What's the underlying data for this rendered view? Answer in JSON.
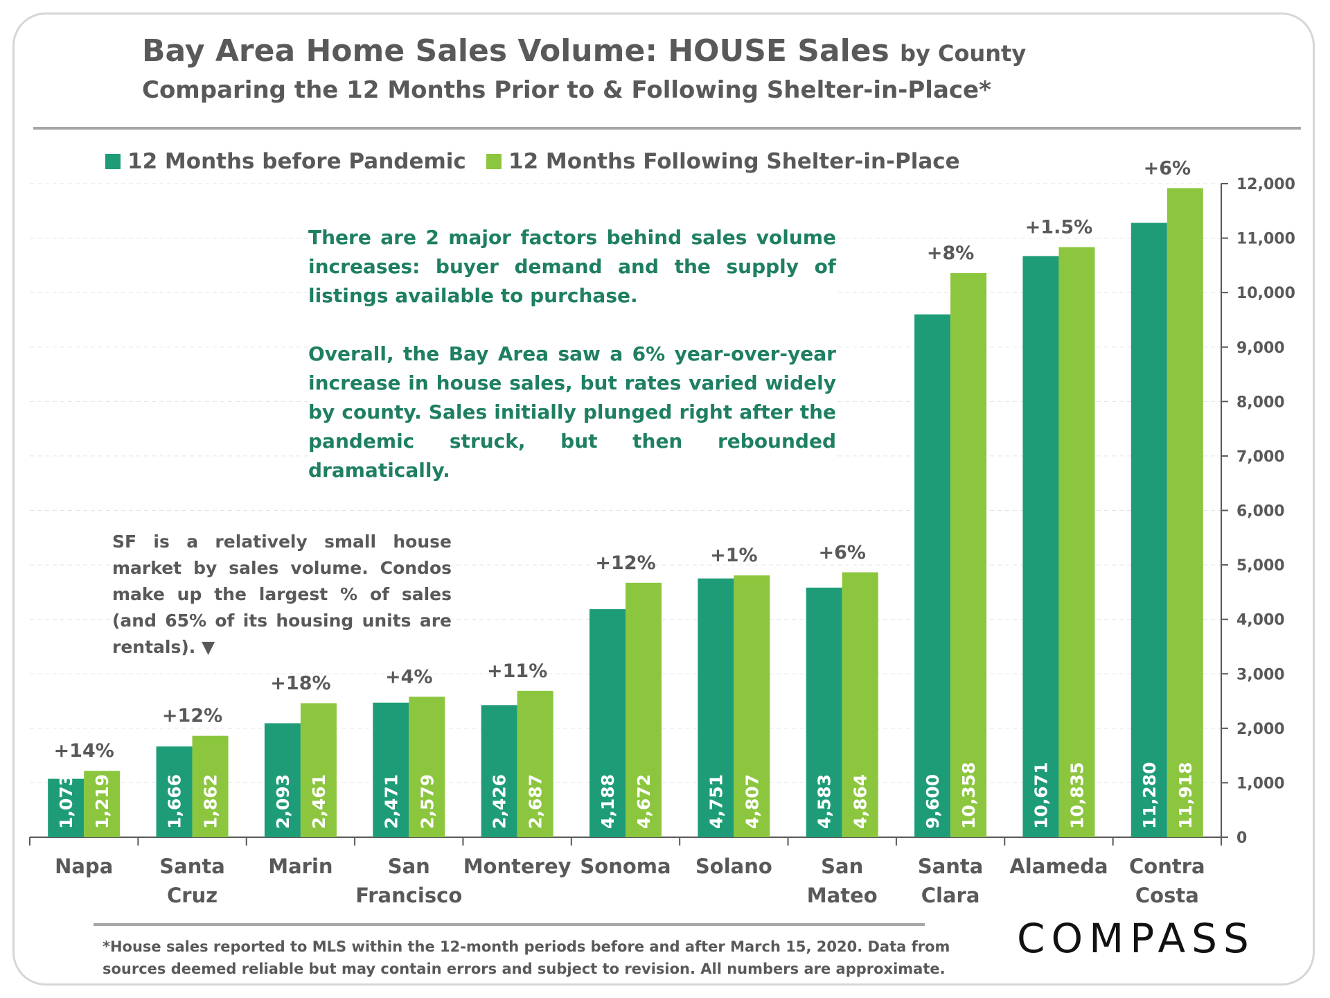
{
  "title": {
    "main": "Bay Area Home Sales Volume: HOUSE Sales",
    "suffix": "by County",
    "subtitle": "Comparing the 12 Months Prior to & Following Shelter-in-Place*"
  },
  "notes": {
    "factors": "There are 2 major factors behind sales volume increases: buyer demand and the supply of listings available to purchase.",
    "overall": "Overall, the Bay Area saw a 6% year-over-year increase in house sales, but rates varied widely by county. Sales initially plunged right after the pandemic struck, but then rebounded dramatically.",
    "sf": "SF is a relatively small house market by sales volume. Condos make up the largest % of sales (and 65% of its housing units are rentals). ▼"
  },
  "footnote": {
    "line1": "*House sales reported to MLS within the 12-month periods before and after March 15, 2020. Data from",
    "line2": "sources deemed reliable but may contain errors and subject to revision.  All numbers are approximate."
  },
  "logo": "COMPASS",
  "colors": {
    "before": "#1e9c78",
    "after": "#8cc63f"
  },
  "chart_data": {
    "type": "bar",
    "title": "Bay Area Home Sales Volume: HOUSE Sales by County",
    "categories": [
      [
        "Napa"
      ],
      [
        "Santa",
        "Cruz"
      ],
      [
        "Marin"
      ],
      [
        "San",
        "Francisco"
      ],
      [
        "Monterey"
      ],
      [
        "Sonoma"
      ],
      [
        "Solano"
      ],
      [
        "San",
        "Mateo"
      ],
      [
        "Santa",
        "Clara"
      ],
      [
        "Alameda"
      ],
      [
        "Contra",
        "Costa"
      ]
    ],
    "series": [
      {
        "name": "12 Months before Pandemic",
        "values": [
          1073,
          1666,
          2093,
          2471,
          2426,
          4188,
          4751,
          4583,
          9600,
          10671,
          11280
        ]
      },
      {
        "name": "12 Months Following Shelter-in-Place",
        "values": [
          1219,
          1862,
          2461,
          2579,
          2687,
          4672,
          4807,
          4864,
          10358,
          10835,
          11918
        ]
      }
    ],
    "value_labels": [
      [
        "1,073",
        "1,666",
        "2,093",
        "2,471",
        "2,426",
        "4,188",
        "4,751",
        "4,583",
        "9,600",
        "10,671",
        "11,280"
      ],
      [
        "1,219",
        "1,862",
        "2,461",
        "2,579",
        "2,687",
        "4,672",
        "4,807",
        "4,864",
        "10,358",
        "10,835",
        "11,918"
      ]
    ],
    "change_labels": [
      "+14%",
      "+12%",
      "+18%",
      "+4%",
      "+11%",
      "+12%",
      "+1%",
      "+6%",
      "+8%",
      "+1.5%",
      "+6%"
    ],
    "yticks": [
      0,
      1000,
      2000,
      3000,
      4000,
      5000,
      6000,
      7000,
      8000,
      9000,
      10000,
      11000,
      12000
    ],
    "ytick_labels": [
      "0",
      "1,000",
      "2,000",
      "3,000",
      "4,000",
      "5,000",
      "6,000",
      "7,000",
      "8,000",
      "9,000",
      "10,000",
      "11,000",
      "12,000"
    ],
    "ylim": [
      0,
      12000
    ],
    "yaxis_side": "right",
    "grid": true,
    "legend": "top-left"
  }
}
